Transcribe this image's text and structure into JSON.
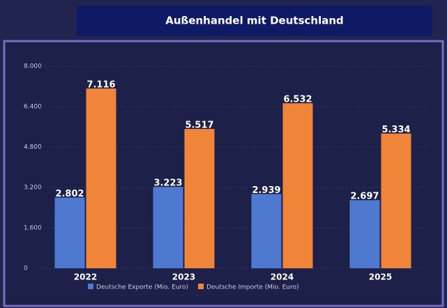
{
  "chart_data": {
    "type": "bar",
    "title": "Außenhandel mit Deutschland",
    "categories": [
      "2022",
      "2023",
      "2024",
      "2025"
    ],
    "series": [
      {
        "name": "Deutsche Exporte (Mio. Euro)",
        "color": "#4f78d0",
        "values": [
          2802,
          3223,
          2939,
          2697
        ],
        "value_labels": [
          "2.802",
          "3.223",
          "2.939",
          "2.697"
        ]
      },
      {
        "name": "Deutsche Importe (Mio. Euro)",
        "color": "#f0853a",
        "values": [
          7116,
          5517,
          6532,
          5334
        ],
        "value_labels": [
          "7.116",
          "5.517",
          "6.532",
          "5.334"
        ]
      }
    ],
    "ylim": [
      0,
      8000
    ],
    "yticks": [
      0,
      {
        "value": 1600,
        "label": "1.600"
      },
      {
        "value": 3200,
        "label": "3.200"
      },
      {
        "value": 4800,
        "label": "4.800"
      },
      {
        "value": 6400,
        "label": "6.400"
      },
      {
        "value": 8000,
        "label": "8.000"
      }
    ],
    "grid": true,
    "legend": "bottom"
  }
}
